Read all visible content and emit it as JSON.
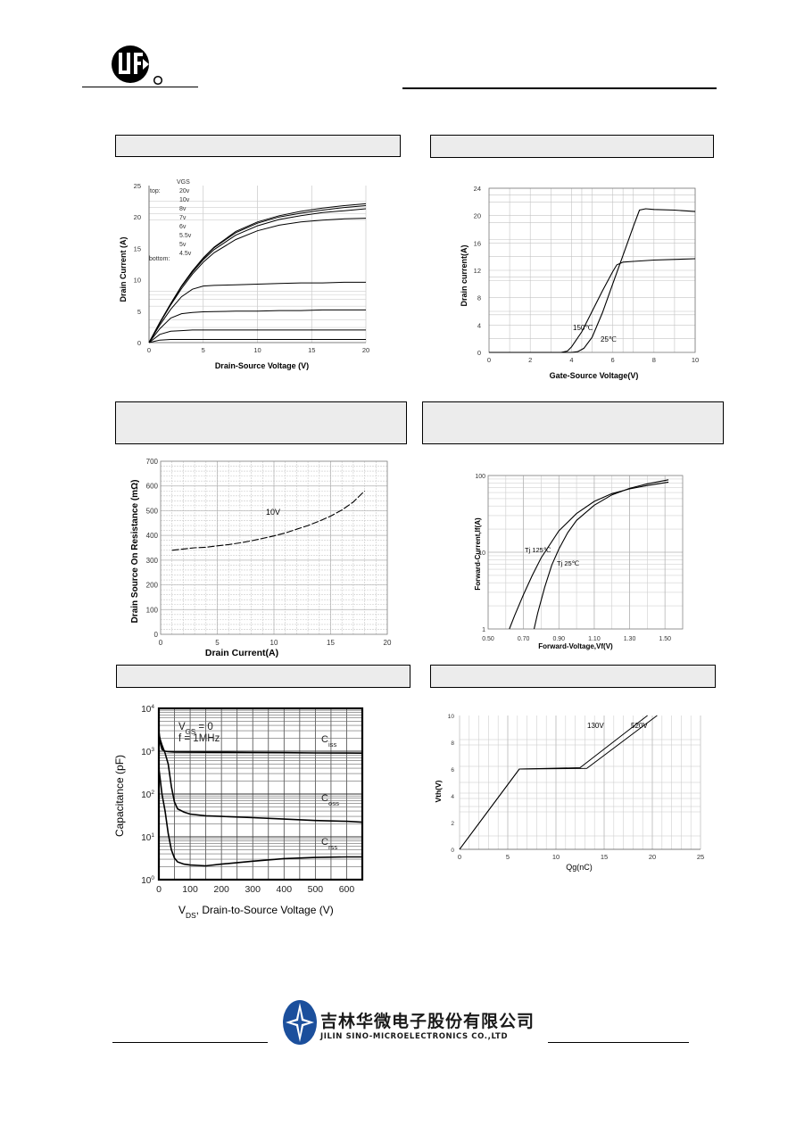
{
  "footer": {
    "company_cn": "吉林华微电子股份有限公司",
    "company_en": "JILIN SINO-MICROELECTRONICS CO.,LTD"
  },
  "charts": [
    {
      "id": "output",
      "chart_data": {
        "type": "line",
        "title": "",
        "xlabel": "Drain-Source Voltage (V)",
        "ylabel": "Drain Current (A)",
        "xlim": [
          0,
          20
        ],
        "ylim": [
          0,
          25
        ],
        "xticks": [
          "0",
          "5",
          "10",
          "15",
          "20"
        ],
        "yticks": [
          "0",
          "5",
          "10",
          "15",
          "20",
          "25"
        ],
        "legend": {
          "header": "VGS",
          "top_label": "top:",
          "bottom_label": "bottom:",
          "entries": [
            "20v",
            "10v",
            "8v",
            "7v",
            "6v",
            "5.5v",
            "5v",
            "4.5v"
          ]
        },
        "series": [
          {
            "x": [
              0,
              1,
              2,
              3,
              4,
              5,
              6,
              8,
              10,
              12,
              14,
              16,
              18,
              20
            ],
            "y": [
              0,
              3.2,
              6.2,
              9.0,
              11.4,
              13.5,
              15.2,
              17.7,
              19.2,
              20.2,
              20.9,
              21.4,
              21.8,
              22.1
            ]
          },
          {
            "x": [
              0,
              1,
              2,
              3,
              4,
              5,
              6,
              8,
              10,
              12,
              14,
              16,
              18,
              20
            ],
            "y": [
              0,
              3.2,
              6.2,
              9.0,
              11.4,
              13.4,
              15.1,
              17.5,
              19.0,
              20.0,
              20.6,
              21.1,
              21.5,
              21.8
            ]
          },
          {
            "x": [
              0,
              1,
              2,
              3,
              4,
              5,
              6,
              8,
              10,
              12,
              14,
              16,
              18,
              20
            ],
            "y": [
              0,
              3.2,
              6.1,
              8.9,
              11.2,
              13.2,
              14.8,
              17.1,
              18.6,
              19.6,
              20.2,
              20.7,
              21.0,
              21.3
            ]
          },
          {
            "x": [
              0,
              1,
              2,
              3,
              4,
              5,
              6,
              8,
              10,
              12,
              14,
              16,
              18,
              20
            ],
            "y": [
              0,
              3.1,
              6.0,
              8.6,
              10.9,
              12.8,
              14.3,
              16.4,
              17.8,
              18.7,
              19.2,
              19.5,
              19.7,
              19.8
            ]
          },
          {
            "x": [
              0,
              1,
              2,
              3,
              4,
              5,
              6,
              8,
              10,
              12,
              14,
              16,
              18,
              20
            ],
            "y": [
              0,
              2.8,
              5.3,
              7.3,
              8.5,
              9.0,
              9.1,
              9.2,
              9.3,
              9.4,
              9.5,
              9.5,
              9.6,
              9.6
            ]
          },
          {
            "x": [
              0,
              1,
              2,
              3,
              4,
              5,
              6,
              8,
              10,
              12,
              14,
              16,
              18,
              20
            ],
            "y": [
              0,
              2.2,
              3.9,
              4.6,
              4.8,
              4.9,
              4.95,
              5.0,
              5.0,
              5.1,
              5.1,
              5.2,
              5.2,
              5.2
            ]
          },
          {
            "x": [
              0,
              1,
              2,
              3,
              4,
              6,
              8,
              10,
              12,
              14,
              16,
              18,
              20
            ],
            "y": [
              0,
              1.3,
              1.8,
              1.9,
              2.0,
              2.0,
              2.0,
              2.0,
              2.0,
              2.0,
              2.0,
              2.0,
              2.0
            ]
          },
          {
            "x": [
              0,
              1,
              2,
              3,
              4,
              6,
              8,
              10,
              12,
              14,
              16,
              18,
              20
            ],
            "y": [
              0,
              0.4,
              0.5,
              0.5,
              0.5,
              0.5,
              0.5,
              0.5,
              0.5,
              0.5,
              0.5,
              0.5,
              0.5
            ]
          }
        ]
      }
    },
    {
      "id": "transfer",
      "chart_data": {
        "type": "line",
        "title": "",
        "xlabel": "Gate-Source Voltage(V)",
        "ylabel": "Drain current(A)",
        "xlim": [
          0,
          10
        ],
        "ylim": [
          0,
          24
        ],
        "xticks": [
          "0",
          "2",
          "4",
          "6",
          "8",
          "10"
        ],
        "yticks": [
          "0",
          "4",
          "8",
          "12",
          "16",
          "20",
          "24"
        ],
        "annotations": [
          "150℃",
          "25℃"
        ],
        "series": [
          {
            "name": "150℃",
            "x": [
              0,
              3.5,
              3.8,
              4.0,
              4.5,
              5.0,
              5.5,
              6.0,
              6.2,
              6.5,
              7.0,
              8.0,
              10.0
            ],
            "y": [
              0,
              0,
              0.2,
              0.8,
              3.0,
              6.0,
              9.0,
              11.8,
              12.8,
              13.2,
              13.3,
              13.5,
              13.7
            ]
          },
          {
            "name": "25℃",
            "x": [
              0,
              4.0,
              4.3,
              4.6,
              5.0,
              5.5,
              6.0,
              6.5,
              7.0,
              7.3,
              7.6,
              8.0,
              9.0,
              10.0
            ],
            "y": [
              0,
              0,
              0.1,
              0.6,
              2.2,
              5.8,
              10.0,
              14.2,
              18.4,
              20.8,
              21.0,
              20.9,
              20.8,
              20.6
            ]
          }
        ]
      }
    },
    {
      "id": "rdson",
      "chart_data": {
        "type": "line",
        "title": "",
        "xlabel": "Drain Current(A)",
        "ylabel": "Drain Source On Resistance (mΩ)",
        "xlim": [
          0,
          20
        ],
        "ylim": [
          0,
          700
        ],
        "xticks": [
          "0",
          "5",
          "10",
          "15",
          "20"
        ],
        "yticks": [
          "0",
          "100",
          "200",
          "300",
          "400",
          "500",
          "600",
          "700"
        ],
        "annotations": [
          "10V"
        ],
        "series": [
          {
            "name": "10V",
            "x": [
              1,
              2,
              3,
              4,
              5,
              6,
              7,
              8,
              9,
              10,
              11,
              12,
              13,
              14,
              15,
              16,
              17,
              18
            ],
            "y": [
              340,
              345,
              350,
              352,
              358,
              363,
              370,
              378,
              388,
              398,
              410,
              425,
              440,
              458,
              478,
              503,
              535,
              580
            ]
          }
        ]
      }
    },
    {
      "id": "diode",
      "chart_data": {
        "type": "line",
        "title": "",
        "xlabel": "Forward-Voltage,Vf(V)",
        "ylabel": "Forward-Current,If(A)",
        "xscale": "linear",
        "yscale": "log",
        "xlim": [
          0.5,
          1.6
        ],
        "ylim": [
          1,
          100
        ],
        "xticks": [
          "0.50",
          "0.70",
          "0.90",
          "1.10",
          "1.30",
          "1.50"
        ],
        "yticks": [
          "1",
          "10",
          "100"
        ],
        "annotations": [
          "Tj 125℃",
          "Tj 25℃"
        ],
        "series": [
          {
            "name": "Tj 125℃",
            "x": [
              0.62,
              0.65,
              0.7,
              0.75,
              0.8,
              0.9,
              1.0,
              1.1,
              1.2,
              1.3,
              1.4,
              1.52
            ],
            "y": [
              1,
              1.5,
              2.8,
              5.0,
              8.5,
              19,
              32,
              46,
              58,
              67,
              74,
              82
            ]
          },
          {
            "name": "Tj 25℃",
            "x": [
              0.76,
              0.78,
              0.82,
              0.86,
              0.9,
              0.95,
              1.0,
              1.1,
              1.2,
              1.3,
              1.4,
              1.52
            ],
            "y": [
              1,
              1.6,
              3.5,
              6.8,
              11,
              18,
              26,
              41,
              56,
              68,
              78,
              88
            ]
          }
        ]
      }
    },
    {
      "id": "capacitance",
      "chart_data": {
        "type": "line",
        "title": "",
        "xlabel": "V_DS, Drain-to-Source Voltage (V)",
        "xlabel_main": "V",
        "xlabel_sub": "DS",
        "xlabel_rest": ", Drain-to-Source Voltage (V)",
        "ylabel": "Capacitance (pF)",
        "xscale": "linear",
        "yscale": "log",
        "xlim": [
          0,
          650
        ],
        "ylim": [
          1,
          10000
        ],
        "xticks": [
          "0",
          "100",
          "200",
          "300",
          "400",
          "500",
          "600"
        ],
        "yticks": [
          {
            "b": "10",
            "e": "0"
          },
          {
            "b": "10",
            "e": "1"
          },
          {
            "b": "10",
            "e": "2"
          },
          {
            "b": "10",
            "e": "3"
          },
          {
            "b": "10",
            "e": "4"
          }
        ],
        "conditions": [
          {
            "main": "V",
            "sub": "GS",
            "rest": " = 0"
          },
          {
            "main": "f = 1MHz",
            "sub": "",
            "rest": ""
          }
        ],
        "series": [
          {
            "name": "Ciss",
            "label_main": "C",
            "label_sub": "iss",
            "x": [
              0,
              5,
              10,
              20,
              30,
              50,
              100,
              200,
              300,
              400,
              500,
              600,
              650
            ],
            "y": [
              3000,
              1500,
              1100,
              1000,
              980,
              960,
              950,
              940,
              930,
              920,
              910,
              905,
              900
            ]
          },
          {
            "name": "Coss",
            "label_main": "C",
            "label_sub": "oss",
            "x": [
              0,
              5,
              10,
              20,
              30,
              40,
              50,
              60,
              80,
              100,
              150,
              200,
              300,
              400,
              500,
              600,
              650
            ],
            "y": [
              2500,
              1800,
              1400,
              900,
              500,
              150,
              65,
              45,
              38,
              34,
              31,
              30,
              28,
              26,
              24,
              23,
              22
            ]
          },
          {
            "name": "Crss",
            "label_main": "C",
            "label_sub": "rss",
            "x": [
              0,
              5,
              10,
              20,
              30,
              40,
              50,
              60,
              80,
              100,
              150,
              200,
              300,
              400,
              500,
              600,
              650
            ],
            "y": [
              400,
              200,
              100,
              40,
              12,
              5,
              3.2,
              2.6,
              2.3,
              2.2,
              2.1,
              2.3,
              2.7,
              3.1,
              3.3,
              3.4,
              3.4
            ]
          }
        ]
      }
    },
    {
      "id": "gatecharge",
      "chart_data": {
        "type": "line",
        "title": "",
        "xlabel": "Qg(nC)",
        "ylabel": "Vth(V)",
        "xlim": [
          0,
          25
        ],
        "ylim": [
          0,
          10
        ],
        "xticks": [
          "0",
          "5",
          "10",
          "15",
          "20",
          "25"
        ],
        "yticks": [
          "0",
          "2",
          "4",
          "6",
          "8",
          "10"
        ],
        "annotations": [
          "130V",
          "520V"
        ],
        "series": [
          {
            "name": "130V",
            "x": [
              0,
              6.2,
              12.5,
              19.5
            ],
            "y": [
              0,
              6,
              6.1,
              10
            ]
          },
          {
            "name": "520V",
            "x": [
              0,
              6.2,
              13.2,
              20.5
            ],
            "y": [
              0,
              6,
              6.05,
              10
            ]
          }
        ]
      }
    }
  ]
}
